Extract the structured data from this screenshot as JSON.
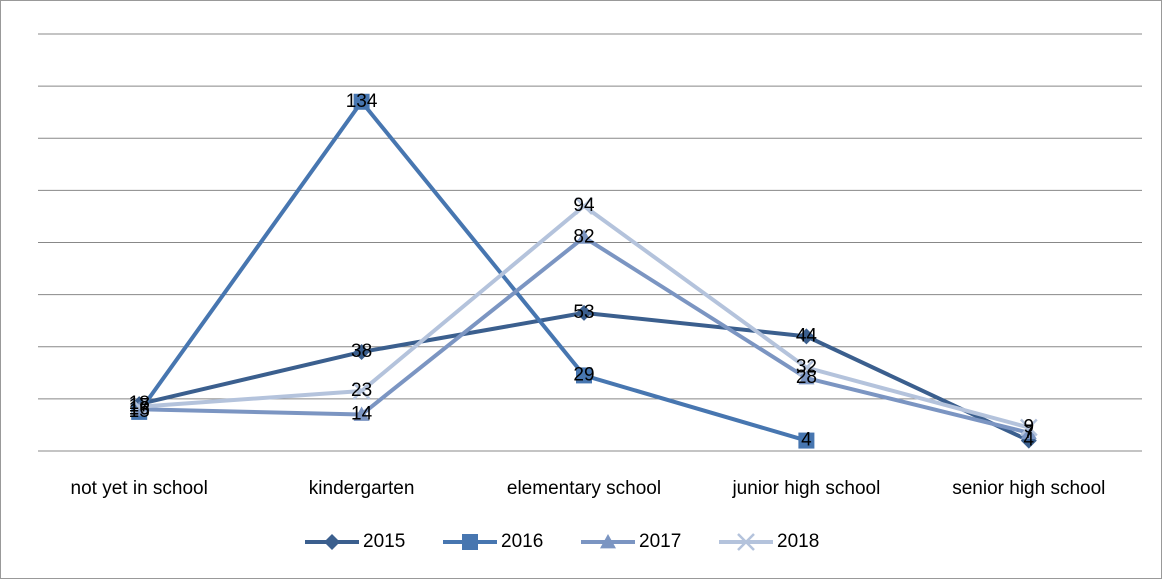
{
  "chart_data": {
    "type": "line",
    "categories": [
      "not yet in school",
      "kindergarten",
      "elementary school",
      "junior high school",
      "senior high school"
    ],
    "series": [
      {
        "name": "2015",
        "color": "#3b5f8e",
        "marker": "diamond",
        "values": [
          18,
          38,
          53,
          44,
          4
        ]
      },
      {
        "name": "2016",
        "color": "#4776b0",
        "marker": "square",
        "values": [
          15,
          134,
          29,
          4,
          null
        ]
      },
      {
        "name": "2017",
        "color": "#7b95c2",
        "marker": "triangle",
        "values": [
          16,
          14,
          82,
          28,
          7
        ]
      },
      {
        "name": "2018",
        "color": "#b4c3dc",
        "marker": "x",
        "values": [
          17,
          23,
          94,
          32,
          9
        ]
      }
    ],
    "ylim": [
      0,
      160
    ],
    "yticks": [
      0,
      20,
      40,
      60,
      80,
      100,
      120,
      140,
      160
    ],
    "grid": true,
    "legend": "bottom"
  }
}
